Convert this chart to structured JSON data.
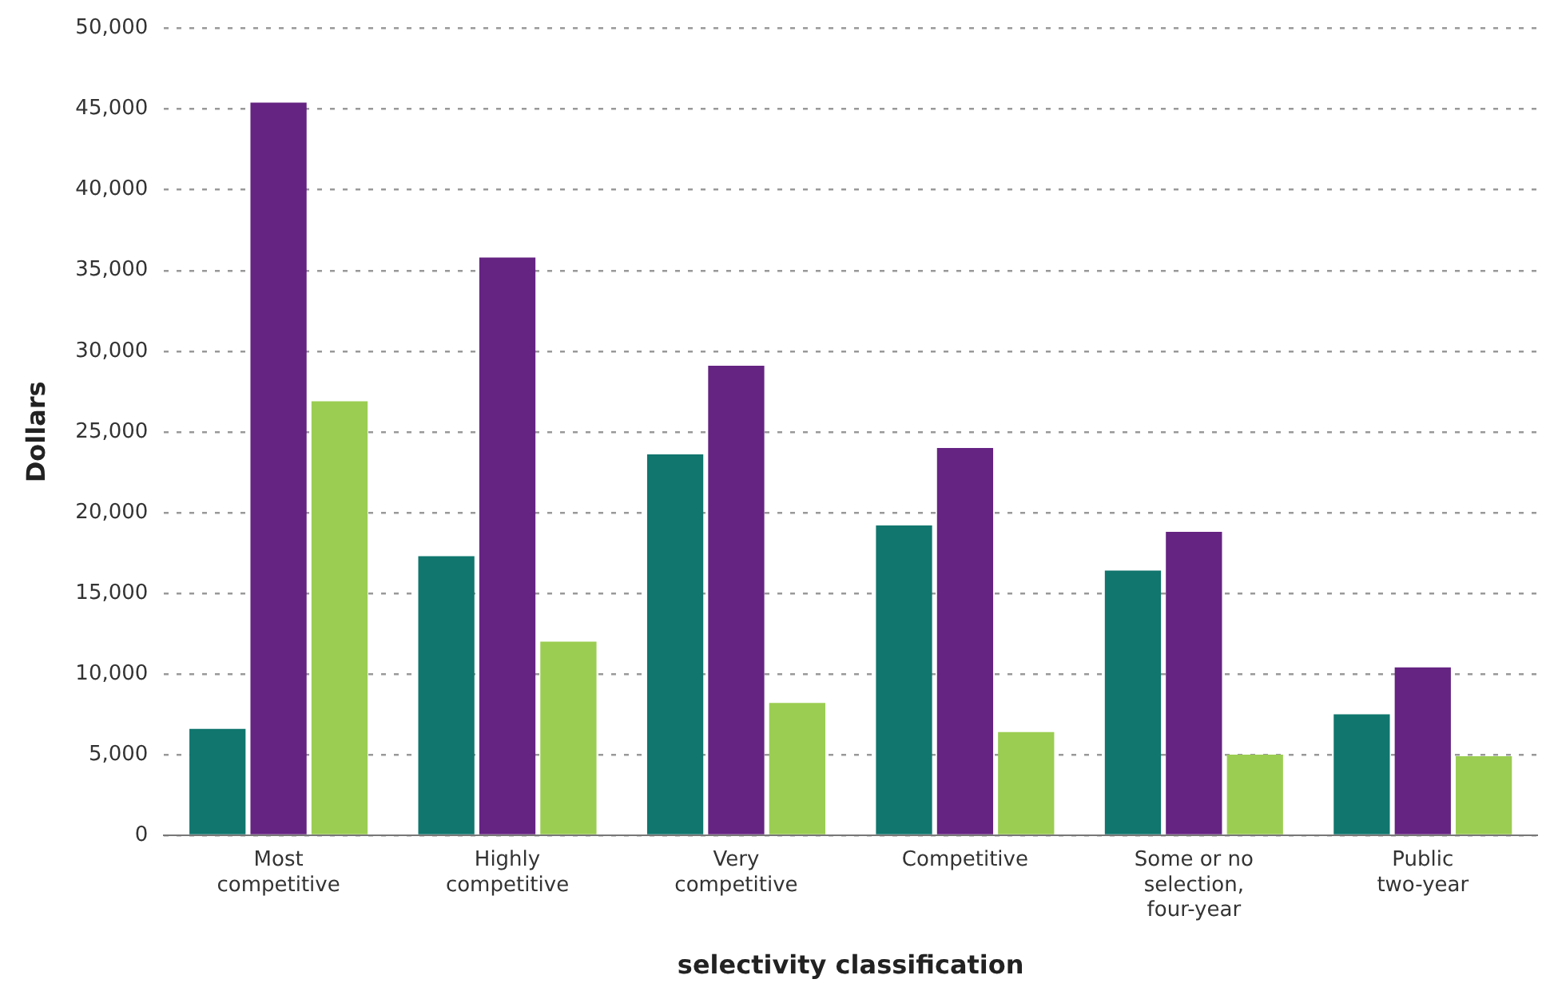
{
  "chart_data": {
    "type": "bar",
    "xlabel": "selectivity classification",
    "ylabel": "Dollars",
    "categories": [
      "Most competitive",
      "Highly competitive",
      "Very competitive",
      "Competitive",
      "Some or no selection, four-year",
      "Public two-year"
    ],
    "series": [
      {
        "color": "#10766e",
        "values": [
          6600,
          17300,
          23600,
          19200,
          16400,
          7500
        ]
      },
      {
        "color": "#652382",
        "values": [
          45400,
          35800,
          29100,
          24000,
          18800,
          10400
        ]
      },
      {
        "color": "#9bcd52",
        "values": [
          26900,
          12000,
          8200,
          6400,
          5000,
          4900
        ]
      }
    ],
    "ylim": [
      0,
      50000
    ],
    "yticks": [
      0,
      {
        "value": 5000,
        "label": "5,000"
      },
      {
        "value": 10000,
        "label": "10,000"
      },
      {
        "value": 15000,
        "label": "15,000"
      },
      {
        "value": 20000,
        "label": "20,000"
      },
      {
        "value": 25000,
        "label": "25,000"
      },
      {
        "value": 30000,
        "label": "30,000"
      },
      {
        "value": 35000,
        "label": "35,000"
      },
      {
        "value": 40000,
        "label": "40,000"
      },
      {
        "value": 45000,
        "label": "45,000"
      },
      {
        "value": 50000,
        "label": "50,000"
      }
    ],
    "grid": "y",
    "legend": false
  }
}
